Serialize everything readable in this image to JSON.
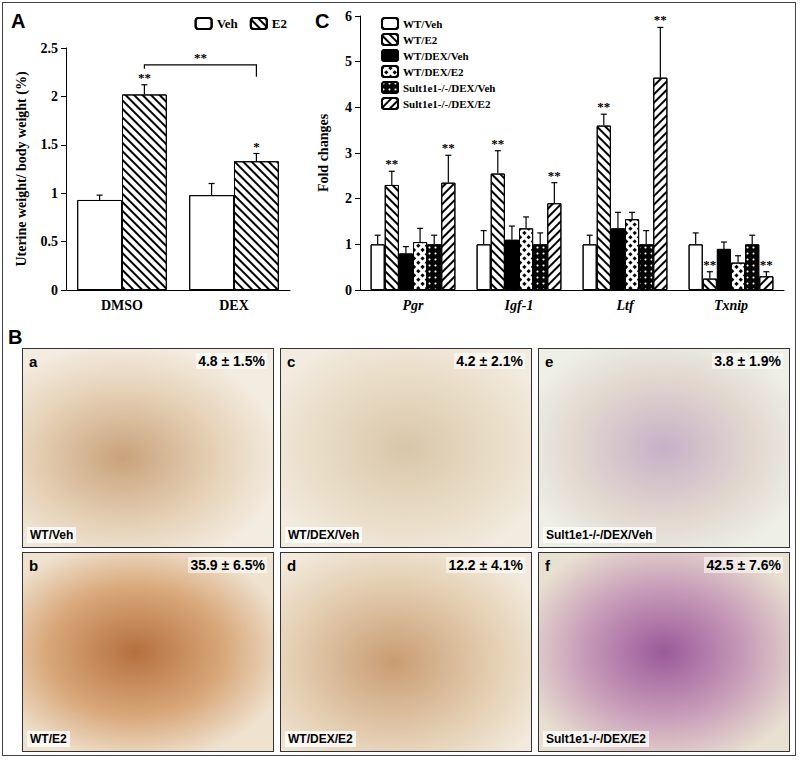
{
  "chart_data": [
    {
      "type": "bar",
      "panel_label": "A",
      "y_label": "Uterine weight/ body weight (%)",
      "categories": [
        "DMSO",
        "DEX"
      ],
      "series": [
        {
          "name": "Veh",
          "color": "#ffffff",
          "marker": "none",
          "values": [
            0.93,
            0.98
          ],
          "errors": [
            0.05,
            0.12
          ],
          "significance": [
            null,
            null
          ]
        },
        {
          "name": "E2",
          "color": "#ffffff",
          "marker": "hatch",
          "values": [
            2.02,
            1.33
          ],
          "errors": [
            0.1,
            0.08
          ],
          "significance": [
            "**",
            "*"
          ]
        }
      ],
      "annotations": [
        {
          "text": "**",
          "between": [
            "DMSO",
            "DEX"
          ],
          "series": "E2"
        }
      ],
      "ylim": [
        0,
        2.5
      ],
      "yticks": [
        0,
        0.5,
        1,
        1.5,
        2,
        2.5
      ],
      "grid": false,
      "legend": "upper right"
    },
    {
      "type": "bar",
      "panel_label": "C",
      "y_label": "Fold changes",
      "categories": [
        "Pgr",
        "Igf-1",
        "Ltf",
        "Txnip"
      ],
      "series": [
        {
          "name": "WT/Veh",
          "color": "#ffffff",
          "marker": "none",
          "values": [
            1.0,
            1.0,
            1.0,
            1.0
          ],
          "errors": [
            0.2,
            0.3,
            0.2,
            0.25
          ],
          "significance": [
            null,
            null,
            null,
            null
          ]
        },
        {
          "name": "WT/E2",
          "color": "#ffffff",
          "marker": "hatch",
          "values": [
            2.3,
            2.55,
            3.6,
            0.25
          ],
          "errors": [
            0.3,
            0.5,
            0.25,
            0.15
          ],
          "significance": [
            "**",
            "**",
            "**",
            "**"
          ]
        },
        {
          "name": "WT/DEX/Veh",
          "color": "#000000",
          "marker": "none",
          "values": [
            0.8,
            1.1,
            1.35,
            0.9
          ],
          "errors": [
            0.15,
            0.3,
            0.35,
            0.15
          ],
          "significance": [
            null,
            null,
            null,
            null
          ]
        },
        {
          "name": "WT/DEX/E2",
          "color": "#ffffff",
          "marker": "crosshatch",
          "values": [
            1.05,
            1.35,
            1.55,
            0.6
          ],
          "errors": [
            0.3,
            0.25,
            0.15,
            0.15
          ],
          "significance": [
            null,
            null,
            null,
            null
          ]
        },
        {
          "name": "Sult1e1-/-/DEX/Veh",
          "color": "#000000",
          "marker": "dots",
          "values": [
            1.0,
            1.0,
            1.0,
            1.0
          ],
          "errors": [
            0.2,
            0.25,
            0.3,
            0.2
          ],
          "significance": [
            null,
            null,
            null,
            null
          ]
        },
        {
          "name": "Sult1e1-/-/DEX/E2",
          "color": "#ffffff",
          "marker": "backhatch",
          "values": [
            2.35,
            1.9,
            4.65,
            0.3
          ],
          "errors": [
            0.6,
            0.45,
            1.1,
            0.1
          ],
          "significance": [
            "**",
            "**",
            "**",
            "**"
          ]
        }
      ],
      "ylim": [
        0,
        6
      ],
      "yticks": [
        0,
        1,
        2,
        3,
        4,
        5,
        6
      ],
      "grid": false,
      "legend": "upper left"
    }
  ],
  "panel_b": {
    "panel_label": "B",
    "images": [
      {
        "letter": "a",
        "label": "WT/Veh",
        "percent": "4.8 ± 1.5%"
      },
      {
        "letter": "b",
        "label": "WT/E2",
        "percent": "35.9 ± 6.5%"
      },
      {
        "letter": "c",
        "label": "WT/DEX/Veh",
        "percent": "4.2 ± 2.1%"
      },
      {
        "letter": "d",
        "label": "WT/DEX/E2",
        "percent": "12.2 ± 4.1%"
      },
      {
        "letter": "e",
        "label": "Sult1e1-/-/DEX/Veh",
        "percent": "3.8 ± 1.9%"
      },
      {
        "letter": "f",
        "label": "Sult1e1-/-/DEX/E2",
        "percent": "42.5 ± 7.6%"
      }
    ]
  }
}
